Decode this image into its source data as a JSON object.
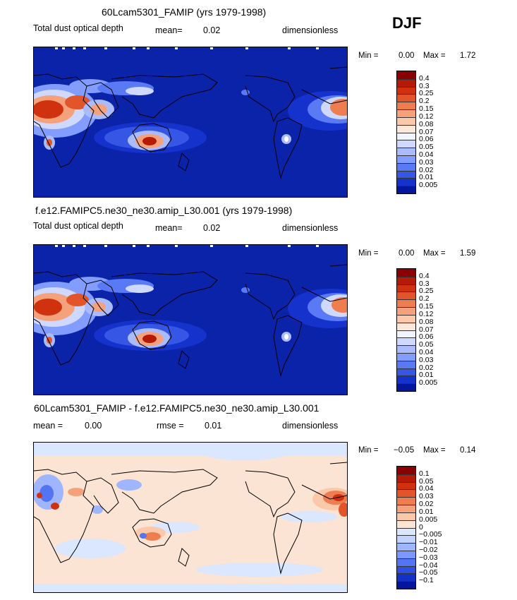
{
  "season": "DJF",
  "panels": [
    {
      "title": "60Lcam5301_FAMIP (yrs 1979-1998)",
      "variable": "Total dust optical depth",
      "stat1_label": "mean=",
      "stat1_value": "0.02",
      "stat2_label": "",
      "stat2_value": "",
      "units": "dimensionless",
      "min_label": "Min =",
      "min_value": "0.00",
      "max_label": "Max =",
      "max_value": "1.72",
      "colorbar": {
        "labels": [
          "0.4",
          "0.3",
          "0.25",
          "0.2",
          "0.15",
          "0.12",
          "0.08",
          "0.07",
          "0.06",
          "0.05",
          "0.04",
          "0.03",
          "0.02",
          "0.01",
          "0.005"
        ],
        "colors": [
          "#8b0000",
          "#b51a06",
          "#d03210",
          "#e2552a",
          "#ee7d50",
          "#f5a27c",
          "#fbc9aa",
          "#fde9dc",
          "#f2f4ff",
          "#cfd9ff",
          "#aabcff",
          "#829dff",
          "#5a79f5",
          "#3656e6",
          "#1533cc",
          "#04169e"
        ]
      }
    },
    {
      "title": "f.e12.FAMIPC5.ne30_ne30.amip_L30.001 (yrs 1979-1998)",
      "variable": "Total dust optical depth",
      "stat1_label": "mean=",
      "stat1_value": "0.02",
      "stat2_label": "",
      "stat2_value": "",
      "units": "dimensionless",
      "min_label": "Min =",
      "min_value": "0.00",
      "max_label": "Max =",
      "max_value": "1.59",
      "colorbar": {
        "labels": [
          "0.4",
          "0.3",
          "0.25",
          "0.2",
          "0.15",
          "0.12",
          "0.08",
          "0.07",
          "0.06",
          "0.05",
          "0.04",
          "0.03",
          "0.02",
          "0.01",
          "0.005"
        ],
        "colors": [
          "#8b0000",
          "#b51a06",
          "#d03210",
          "#e2552a",
          "#ee7d50",
          "#f5a27c",
          "#fbc9aa",
          "#fde9dc",
          "#f2f4ff",
          "#cfd9ff",
          "#aabcff",
          "#829dff",
          "#5a79f5",
          "#3656e6",
          "#1533cc",
          "#04169e"
        ]
      }
    },
    {
      "title": "60Lcam5301_FAMIP - f.e12.FAMIPC5.ne30_ne30.amip_L30.001",
      "variable": "",
      "stat1_label": "mean =",
      "stat1_value": "0.00",
      "stat2_label": "rmse =",
      "stat2_value": "0.01",
      "units": "dimensionless",
      "min_label": "Min =",
      "min_value": "−0.05",
      "max_label": "Max =",
      "max_value": "0.14",
      "colorbar": {
        "labels": [
          "0.1",
          "0.05",
          "0.04",
          "0.03",
          "0.02",
          "0.01",
          "0.005",
          "0",
          "−0.005",
          "−0.01",
          "−0.02",
          "−0.03",
          "−0.04",
          "−0.05",
          "−0.1"
        ],
        "colors": [
          "#8b0000",
          "#b51a06",
          "#d03210",
          "#e2552a",
          "#ee7d50",
          "#f5a27c",
          "#fbc9aa",
          "#fde4d4",
          "#dbe6ff",
          "#c3d3ff",
          "#9fb6ff",
          "#7c98ff",
          "#5474f2",
          "#2f4fe0",
          "#1431c6",
          "#04169e"
        ]
      }
    }
  ]
}
